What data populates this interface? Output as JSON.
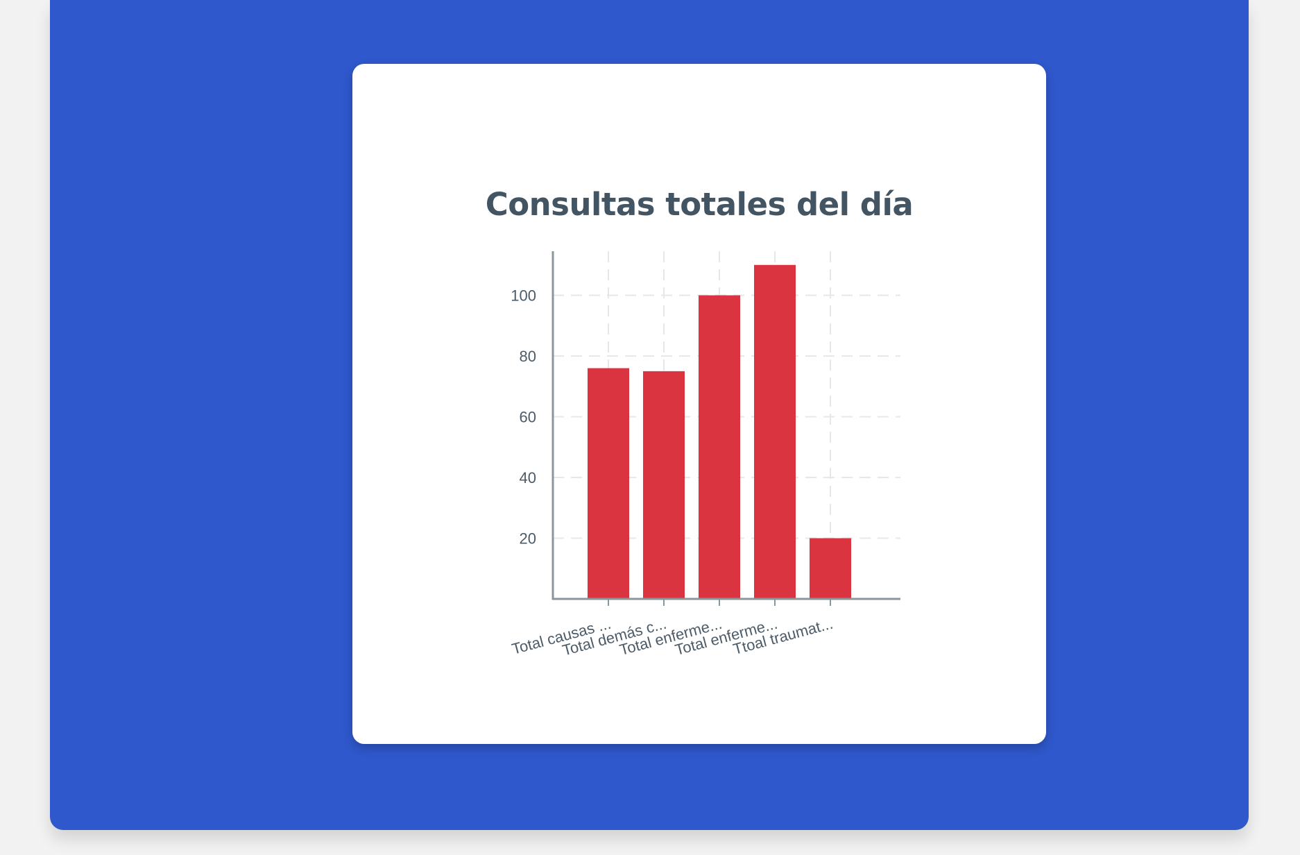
{
  "card": {
    "title": "Consultas totales del día"
  },
  "colors": {
    "background": "#2f58cc",
    "card": "#ffffff",
    "bar": "#da3440",
    "axis": "#8a969e",
    "grid": "#e7e7e7",
    "text": "#4b5b68",
    "title": "#435462"
  },
  "chart_data": {
    "type": "bar",
    "title": "Consultas totales del día",
    "categories": [
      "Total causas ...",
      "Total demás c...",
      "Total enferme...",
      "Total enferme...",
      "Ttoal traumat..."
    ],
    "values": [
      76,
      75,
      100,
      110,
      20
    ],
    "yticks": [
      20,
      40,
      60,
      80,
      100
    ],
    "ylim": [
      0,
      115
    ],
    "xlabel": "",
    "ylabel": "",
    "grid": true,
    "legend": "none"
  }
}
